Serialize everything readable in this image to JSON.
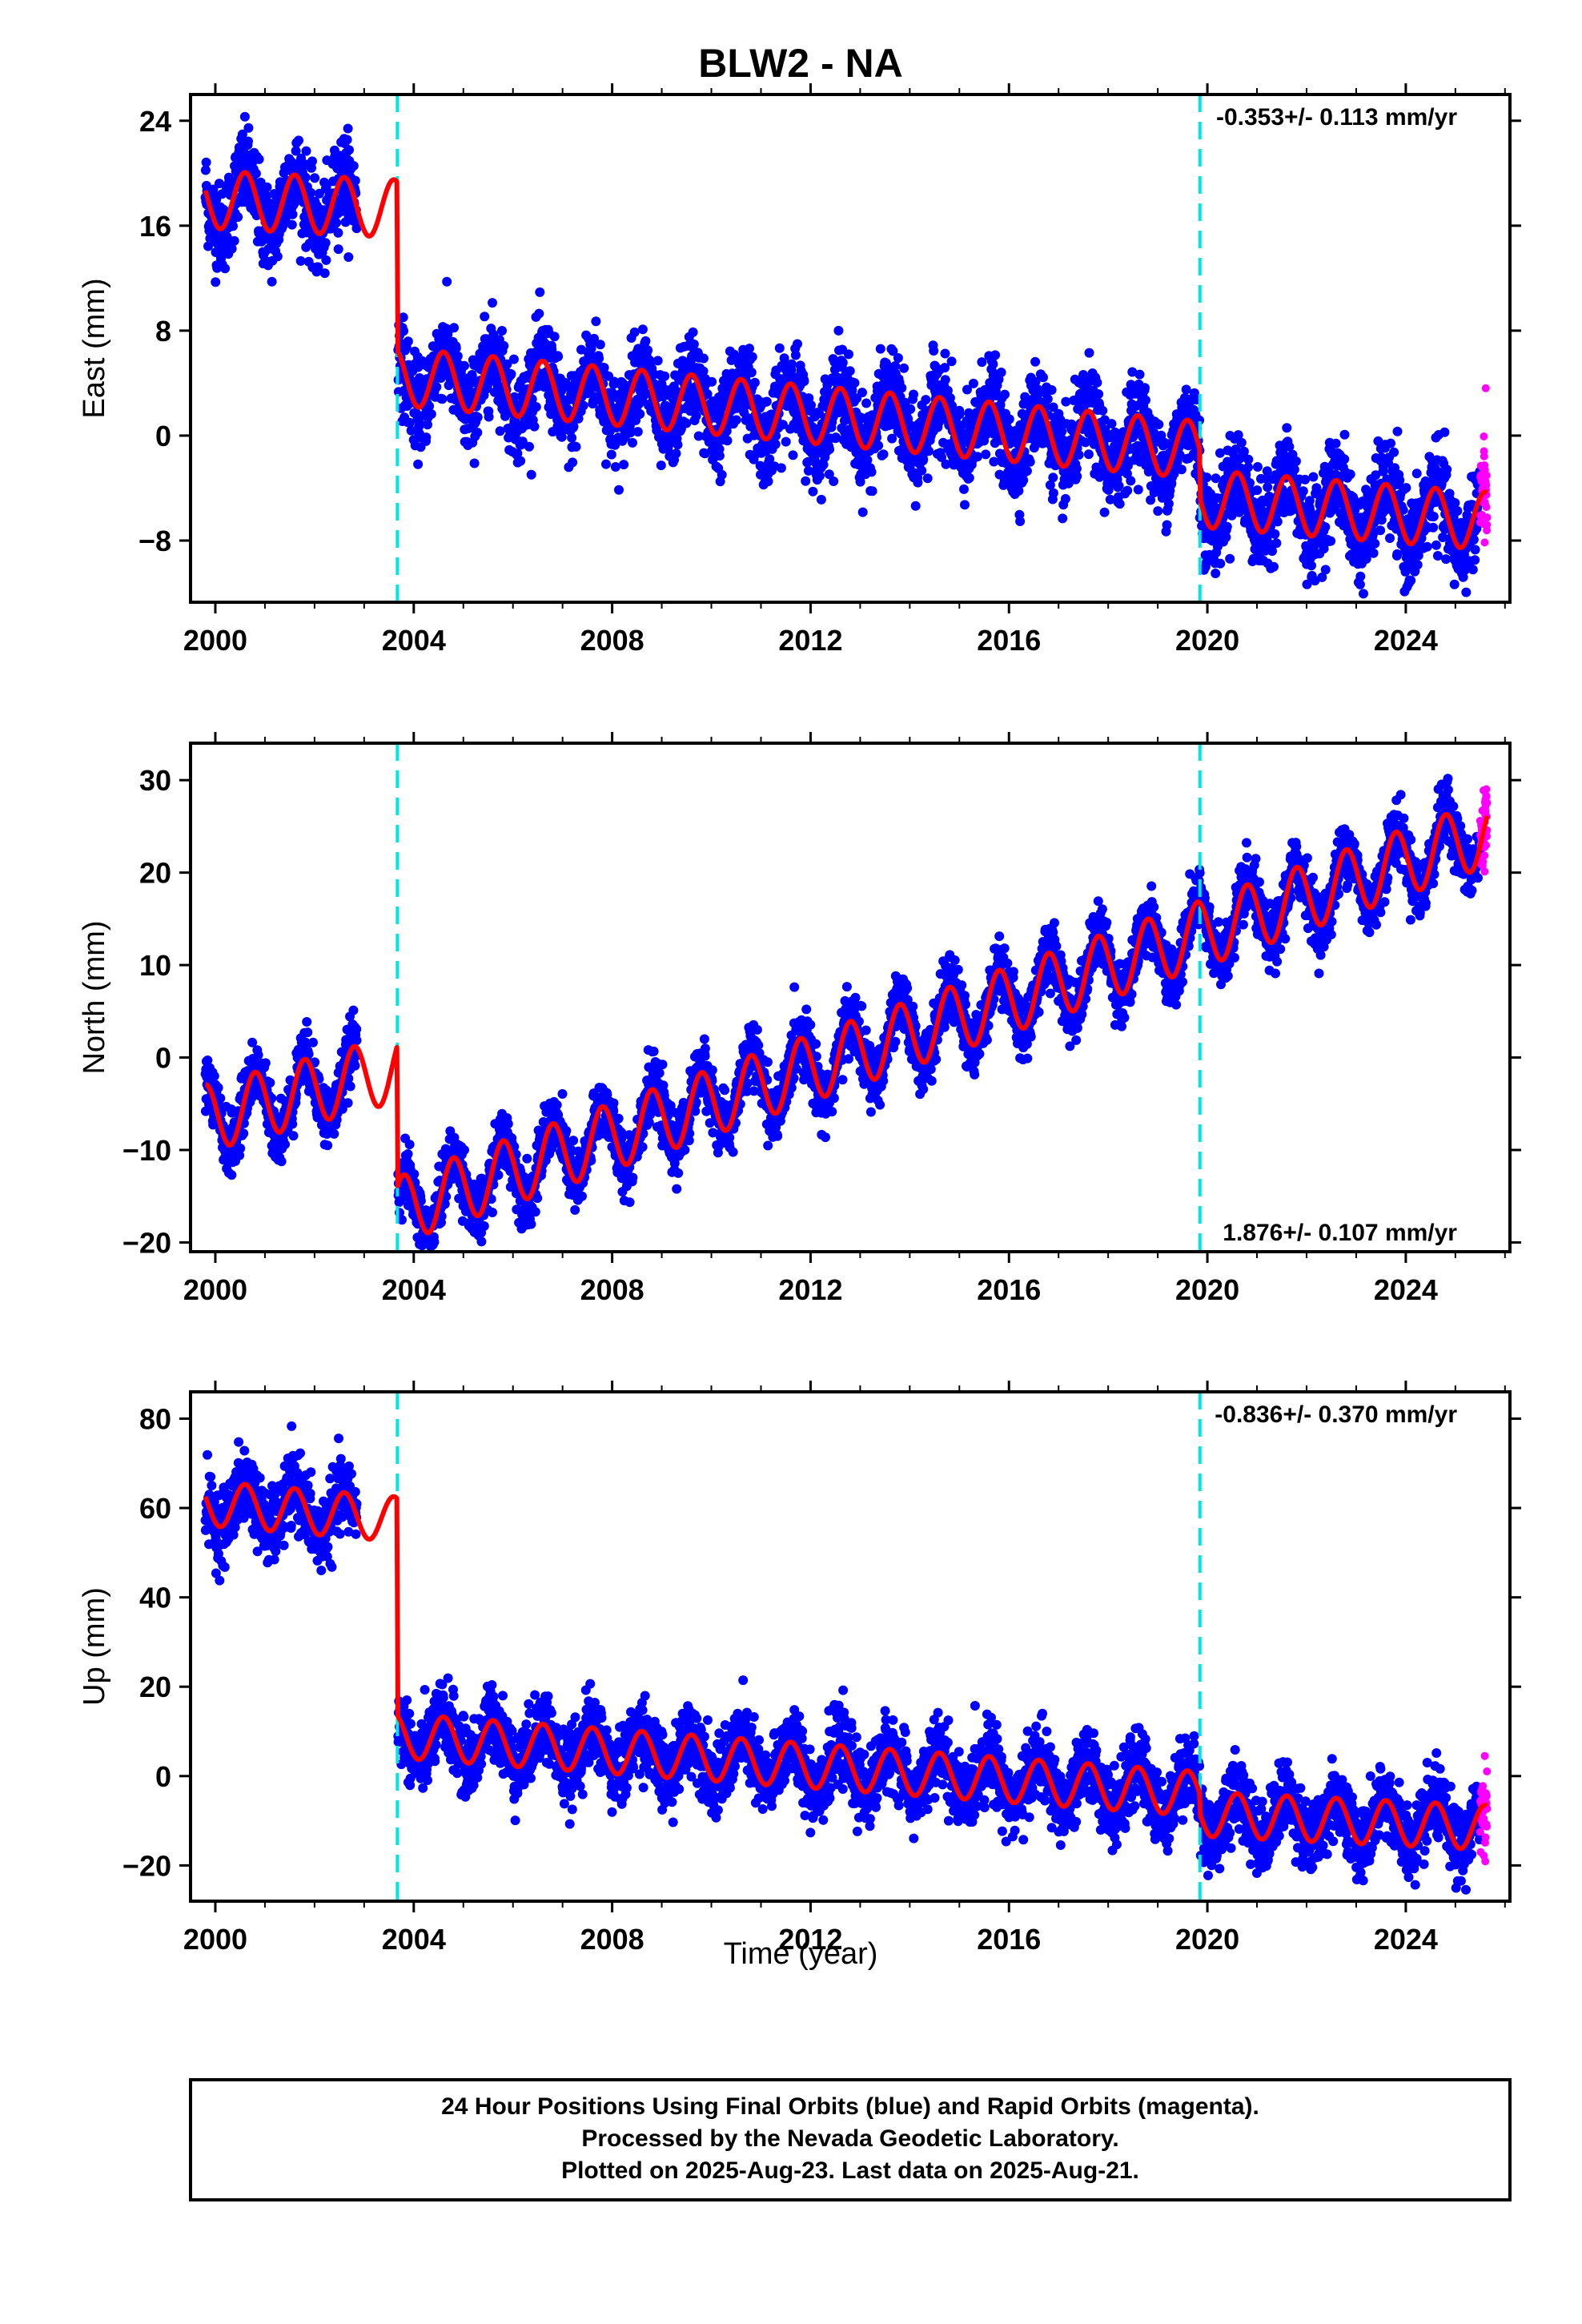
{
  "chart_data": {
    "type": "scatter",
    "title": "BLW2 - NA",
    "xlabel": "Time (year)",
    "xlim": [
      1999.5,
      2026.1
    ],
    "xticks": [
      2000,
      2004,
      2008,
      2012,
      2016,
      2020,
      2024
    ],
    "data_start": 1999.8,
    "last_final": 2025.5,
    "last_rapid": 2025.64,
    "colors": {
      "final": "#0000ff",
      "rapid": "#ff00ff",
      "model": "#ff0000",
      "steps": "#00e5e5"
    },
    "steps": [
      2003.67,
      2019.85
    ],
    "legend": {
      "lines": [
        "24 Hour Positions Using Final Orbits (blue) and Rapid Orbits (magenta).",
        "Processed by the Nevada Geodetic Laboratory.",
        "Plotted on 2025-Aug-23. Last data on 2025-Aug-21."
      ]
    },
    "panels": [
      {
        "ylabel": "East (mm)",
        "ylim": [
          -12.7,
          26
        ],
        "yticks": [
          24,
          16,
          8,
          0,
          -8
        ],
        "rate_label": "-0.353+/- 0.113 mm/yr",
        "rate_position": "top-right",
        "trend_anchors": [
          [
            1999.85,
            18
          ],
          [
            2003.66,
            17.3
          ],
          [
            2003.68,
            4.5
          ],
          [
            2019.84,
            -1.1
          ],
          [
            2019.86,
            -4.8
          ],
          [
            2025.6,
            -6.5
          ]
        ],
        "annual_amplitude": 2.2,
        "scatter_sd": 1.7
      },
      {
        "ylabel": "North (mm)",
        "ylim": [
          -21,
          34
        ],
        "yticks": [
          30,
          20,
          10,
          0,
          -10,
          -20
        ],
        "rate_label": "1.876+/- 0.107 mm/yr",
        "rate_position": "bottom-right",
        "trend_anchors": [
          [
            1999.85,
            -6.5
          ],
          [
            2003.66,
            -1.2
          ],
          [
            2003.68,
            -16.5
          ],
          [
            2019.84,
            13.3
          ],
          [
            2019.86,
            13.3
          ],
          [
            2025.6,
            24.2
          ]
        ],
        "annual_amplitude": 3.6,
        "scatter_sd": 1.6
      },
      {
        "ylabel": "Up (mm)",
        "ylim": [
          -28,
          86
        ],
        "yticks": [
          80,
          60,
          40,
          20,
          0,
          -20
        ],
        "rate_label": "-0.836+/- 0.370 mm/yr",
        "rate_position": "top-right",
        "trend_anchors": [
          [
            1999.85,
            61
          ],
          [
            2003.66,
            57.5
          ],
          [
            2003.68,
            9
          ],
          [
            2019.84,
            -4
          ],
          [
            2019.86,
            -8.5
          ],
          [
            2025.6,
            -11.5
          ]
        ],
        "annual_amplitude": 5,
        "scatter_sd": 4
      }
    ]
  }
}
